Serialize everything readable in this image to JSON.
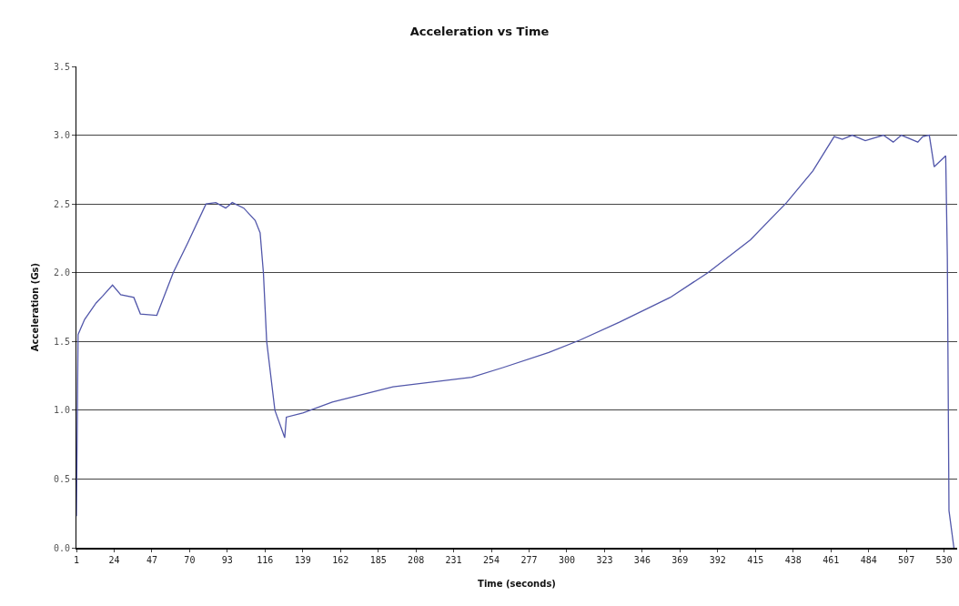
{
  "chart_data": {
    "type": "line",
    "title": "Acceleration vs Time",
    "xlabel": "Time (seconds)",
    "ylabel": "Acceleration (Gs)",
    "x": [
      1,
      2,
      6,
      13,
      17,
      23,
      28,
      36,
      40,
      50,
      60,
      69,
      80,
      86,
      92,
      96,
      103,
      110,
      113,
      115,
      117,
      122,
      128,
      129,
      139,
      157,
      194,
      242,
      261,
      289,
      308,
      332,
      363,
      386,
      412,
      434,
      450,
      463,
      468,
      474,
      482,
      493,
      499,
      504,
      510,
      514,
      517,
      521,
      524,
      531,
      532,
      533,
      536
    ],
    "series": [
      {
        "color": "#5257aa",
        "values": [
          0.23,
          1.55,
          1.66,
          1.78,
          1.83,
          1.91,
          1.84,
          1.82,
          1.7,
          1.69,
          2.0,
          2.22,
          2.5,
          2.51,
          2.47,
          2.51,
          2.47,
          2.38,
          2.29,
          2.0,
          1.5,
          1.0,
          0.8,
          0.95,
          0.98,
          1.06,
          1.17,
          1.24,
          1.31,
          1.42,
          1.51,
          1.64,
          1.82,
          2.0,
          2.24,
          2.51,
          2.74,
          2.99,
          2.97,
          3.0,
          2.96,
          3.0,
          2.95,
          3.0,
          2.97,
          2.95,
          2.99,
          3.0,
          2.77,
          2.85,
          2.11,
          0.27,
          0.0
        ]
      }
    ],
    "xlim": [
      1,
      538
    ],
    "xticks": [
      1,
      24,
      47,
      70,
      93,
      116,
      139,
      162,
      185,
      208,
      231,
      254,
      277,
      300,
      323,
      346,
      369,
      392,
      415,
      438,
      461,
      484,
      507,
      530
    ],
    "ylim": [
      0,
      3.5
    ],
    "yticks": [
      {
        "value": 0,
        "label": "0.0"
      },
      {
        "value": 0.5,
        "label": "0.5"
      },
      {
        "value": 1,
        "label": "1.0"
      },
      {
        "value": 1.5,
        "label": "1.5"
      },
      {
        "value": 2,
        "label": "2.0"
      },
      {
        "value": 2.5,
        "label": "2.5"
      },
      {
        "value": 3,
        "label": "3.0"
      },
      {
        "value": 3.5,
        "label": "3.5"
      }
    ],
    "grid": "y",
    "marker": "none",
    "line_style": "solid"
  }
}
